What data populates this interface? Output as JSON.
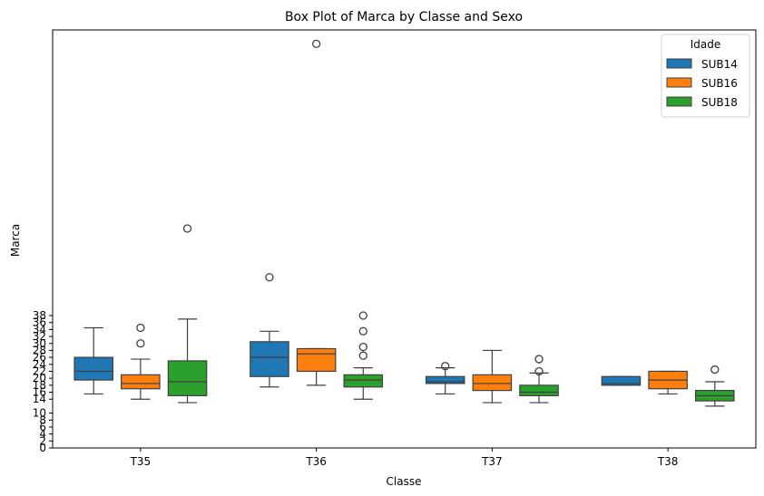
{
  "chart_data": {
    "type": "box",
    "title": "Box Plot of Marca by Classe and Sexo",
    "xlabel": "Classe",
    "ylabel": "Marca",
    "categories": [
      "T35",
      "T36",
      "T37",
      "T38"
    ],
    "yticks": [
      0,
      2,
      4,
      6,
      8,
      10,
      14,
      16,
      18,
      20,
      22,
      24,
      26,
      28,
      30,
      32,
      34,
      36,
      38
    ],
    "ylim": [
      0,
      120
    ],
    "legend": {
      "title": "Idade",
      "position": "top-right"
    },
    "series": [
      {
        "name": "SUB14",
        "color": "#1f77b4",
        "boxes": [
          {
            "category": "T35",
            "whisker_low": 15.5,
            "q1": 19.5,
            "median": 22,
            "q3": 26,
            "whisker_high": 34.5,
            "outliers": []
          },
          {
            "category": "T36",
            "whisker_low": 17.5,
            "q1": 20.5,
            "median": 26,
            "q3": 30.5,
            "whisker_high": 33.5,
            "outliers": [
              49
            ]
          },
          {
            "category": "T37",
            "whisker_low": 15.5,
            "q1": 18.5,
            "median": 19,
            "q3": 20.5,
            "whisker_high": 23,
            "outliers": [
              23.5
            ]
          },
          {
            "category": "T38",
            "whisker_low": 18,
            "q1": 18,
            "median": 18.5,
            "q3": 20.5,
            "whisker_high": 20.5,
            "outliers": []
          }
        ]
      },
      {
        "name": "SUB16",
        "color": "#ff7f0e",
        "boxes": [
          {
            "category": "T35",
            "whisker_low": 14,
            "q1": 17,
            "median": 18.5,
            "q3": 21,
            "whisker_high": 25.5,
            "outliers": [
              30,
              34.5
            ]
          },
          {
            "category": "T36",
            "whisker_low": 18,
            "q1": 22,
            "median": 27,
            "q3": 28.5,
            "whisker_high": 28.5,
            "outliers": [
              116
            ]
          },
          {
            "category": "T37",
            "whisker_low": 13,
            "q1": 16.5,
            "median": 18.5,
            "q3": 21,
            "whisker_high": 28,
            "outliers": []
          },
          {
            "category": "T38",
            "whisker_low": 15.5,
            "q1": 17,
            "median": 19.5,
            "q3": 22,
            "whisker_high": 22,
            "outliers": []
          }
        ]
      },
      {
        "name": "SUB18",
        "color": "#2ca02c",
        "boxes": [
          {
            "category": "T35",
            "whisker_low": 13,
            "q1": 15,
            "median": 19,
            "q3": 25,
            "whisker_high": 37,
            "outliers": [
              63
            ]
          },
          {
            "category": "T36",
            "whisker_low": 14,
            "q1": 17.5,
            "median": 19.5,
            "q3": 21,
            "whisker_high": 23,
            "outliers": [
              26.5,
              29,
              33.5,
              38
            ]
          },
          {
            "category": "T37",
            "whisker_low": 13,
            "q1": 15,
            "median": 16,
            "q3": 18,
            "whisker_high": 21.5,
            "outliers": [
              22,
              25.5
            ]
          },
          {
            "category": "T38",
            "whisker_low": 12,
            "q1": 13.5,
            "median": 15,
            "q3": 16.5,
            "whisker_high": 19,
            "outliers": [
              22.5
            ]
          }
        ]
      }
    ]
  }
}
